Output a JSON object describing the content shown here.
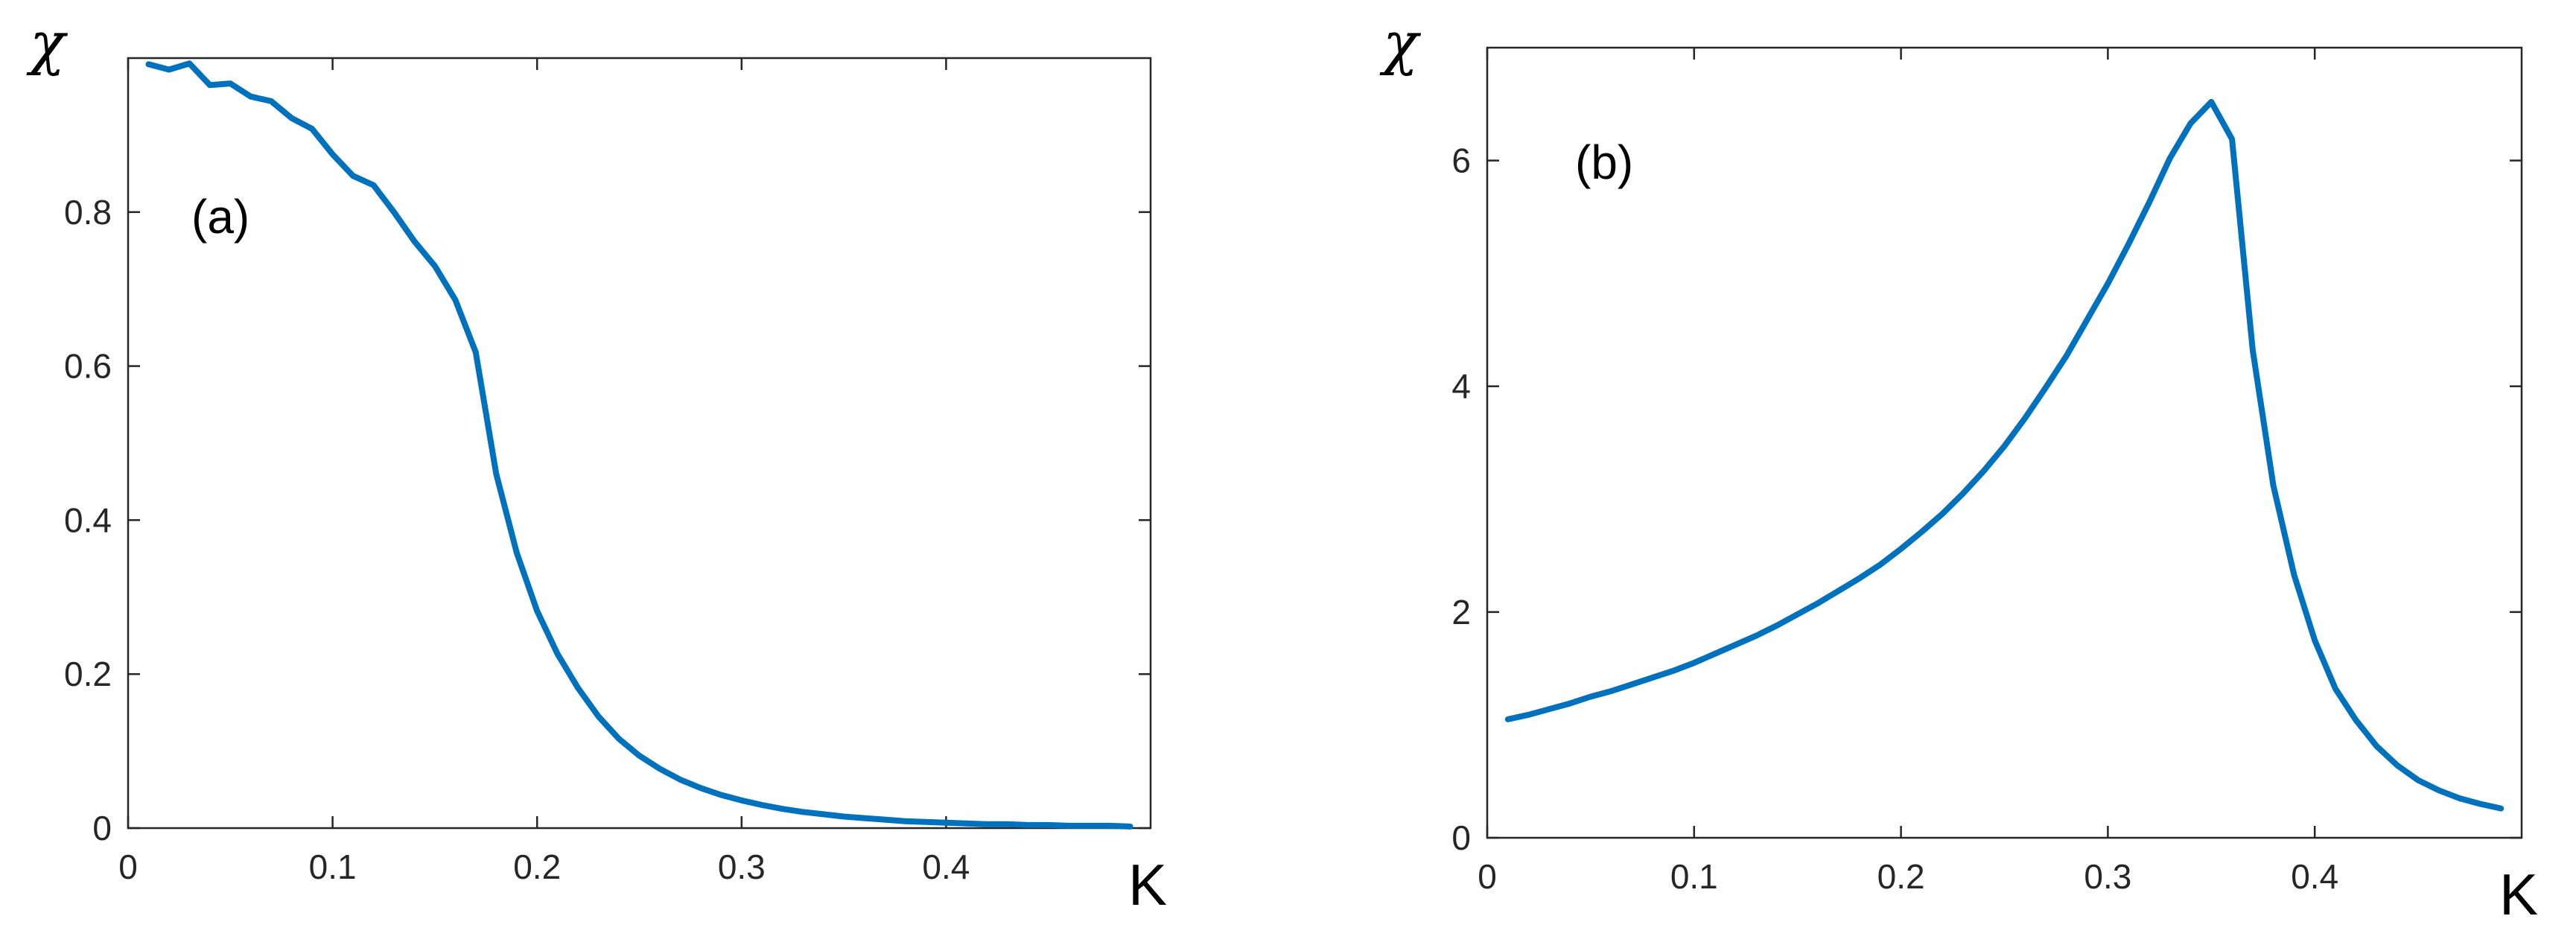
{
  "colors": {
    "line": "#0072BD",
    "axis": "#262626",
    "background": "#ffffff"
  },
  "chart_data": [
    {
      "type": "line",
      "panel_label": "(a)",
      "xlabel": "K",
      "ylabel": "χ",
      "xlim": [
        0,
        0.5
      ],
      "ylim": [
        0,
        1.0
      ],
      "grid": false,
      "x_ticks": [
        0,
        0.1,
        0.2,
        0.3,
        0.4
      ],
      "x_tick_labels": [
        "0",
        "0.1",
        "0.2",
        "0.3",
        "0.4"
      ],
      "y_ticks": [
        0,
        0.2,
        0.4,
        0.6,
        0.8
      ],
      "y_tick_labels": [
        "0",
        "0.2",
        "0.4",
        "0.6",
        "0.8"
      ],
      "series": [
        {
          "x": [
            0.01,
            0.02,
            0.03,
            0.04,
            0.05,
            0.06,
            0.07,
            0.08,
            0.09,
            0.1,
            0.11,
            0.12,
            0.13,
            0.14,
            0.15,
            0.16,
            0.17,
            0.18,
            0.19,
            0.2,
            0.21,
            0.22,
            0.23,
            0.24,
            0.25,
            0.26,
            0.27,
            0.28,
            0.29,
            0.3,
            0.31,
            0.32,
            0.33,
            0.34,
            0.35,
            0.36,
            0.37,
            0.38,
            0.39,
            0.4,
            0.41,
            0.42,
            0.43,
            0.44,
            0.45,
            0.46,
            0.47,
            0.48,
            0.49
          ],
          "y": [
            0.992,
            0.985,
            0.993,
            0.965,
            0.967,
            0.95,
            0.944,
            0.922,
            0.908,
            0.875,
            0.847,
            0.835,
            0.8,
            0.762,
            0.73,
            0.686,
            0.618,
            0.46,
            0.358,
            0.282,
            0.226,
            0.182,
            0.145,
            0.116,
            0.094,
            0.077,
            0.063,
            0.052,
            0.043,
            0.036,
            0.03,
            0.025,
            0.021,
            0.018,
            0.015,
            0.013,
            0.011,
            0.009,
            0.008,
            0.007,
            0.006,
            0.005,
            0.005,
            0.004,
            0.004,
            0.003,
            0.003,
            0.003,
            0.002
          ]
        }
      ]
    },
    {
      "type": "line",
      "panel_label": "(b)",
      "xlabel": "K",
      "ylabel": "χ",
      "xlim": [
        0,
        0.5
      ],
      "ylim": [
        0,
        7
      ],
      "grid": false,
      "x_ticks": [
        0,
        0.1,
        0.2,
        0.3,
        0.4
      ],
      "x_tick_labels": [
        "0",
        "0.1",
        "0.2",
        "0.3",
        "0.4"
      ],
      "y_ticks": [
        0,
        2,
        4,
        6
      ],
      "y_tick_labels": [
        "0",
        "2",
        "4",
        "6"
      ],
      "series": [
        {
          "x": [
            0.01,
            0.02,
            0.03,
            0.04,
            0.05,
            0.06,
            0.07,
            0.08,
            0.09,
            0.1,
            0.11,
            0.12,
            0.13,
            0.14,
            0.15,
            0.16,
            0.17,
            0.18,
            0.19,
            0.2,
            0.21,
            0.22,
            0.23,
            0.24,
            0.25,
            0.26,
            0.27,
            0.28,
            0.29,
            0.3,
            0.31,
            0.32,
            0.33,
            0.34,
            0.35,
            0.36,
            0.37,
            0.38,
            0.39,
            0.4,
            0.41,
            0.42,
            0.43,
            0.44,
            0.45,
            0.46,
            0.47,
            0.48,
            0.49
          ],
          "y": [
            1.05,
            1.09,
            1.14,
            1.19,
            1.25,
            1.3,
            1.36,
            1.42,
            1.48,
            1.55,
            1.63,
            1.71,
            1.79,
            1.88,
            1.98,
            2.08,
            2.19,
            2.3,
            2.42,
            2.56,
            2.71,
            2.87,
            3.05,
            3.25,
            3.47,
            3.72,
            3.99,
            4.27,
            4.59,
            4.91,
            5.26,
            5.63,
            6.02,
            6.33,
            6.52,
            6.19,
            4.32,
            3.12,
            2.33,
            1.75,
            1.32,
            1.04,
            0.81,
            0.64,
            0.51,
            0.42,
            0.35,
            0.3,
            0.26
          ]
        }
      ]
    }
  ]
}
